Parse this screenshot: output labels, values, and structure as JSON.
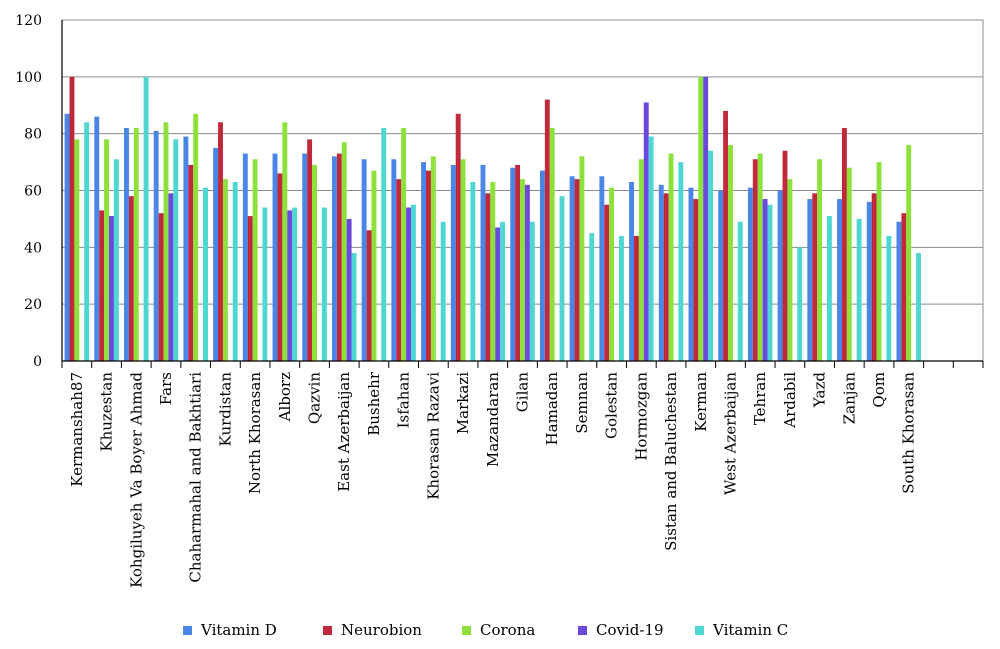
{
  "chart_data": {
    "type": "bar",
    "categories": [
      "Kermanshah87",
      "Khuzestan",
      "Kohgiluyeh Va Boyer Ahmad",
      "Fars",
      "Chaharmahal and Bakhtiari",
      "Kurdistan",
      "North Khorasan",
      "Alborz",
      "Qazvin",
      "East Azerbaijan",
      "Bushehr",
      "Isfahan",
      "Khorasan Razavi",
      "Markazi",
      "Mazandaran",
      "Gilan",
      "Hamadan",
      "Semnan",
      "Golestan",
      "Hormozgan",
      "Sistan and Baluchestan",
      "Kerman",
      "West Azerbaijan",
      "Tehran",
      "Ardabil",
      "Yazd",
      "Zanjan",
      "Qom",
      "South Khorasan",
      "",
      ""
    ],
    "series": [
      {
        "name": "Vitamin D",
        "color": "#4a86e8",
        "values": [
          87,
          86,
          82,
          81,
          79,
          75,
          73,
          73,
          73,
          72,
          71,
          71,
          70,
          69,
          69,
          68,
          67,
          65,
          65,
          63,
          62,
          61,
          60,
          61,
          60,
          57,
          57,
          56,
          49,
          null,
          null
        ]
      },
      {
        "name": "Neurobion",
        "color": "#c0283c",
        "values": [
          100,
          53,
          58,
          52,
          69,
          84,
          51,
          66,
          78,
          73,
          46,
          64,
          67,
          87,
          59,
          69,
          92,
          64,
          55,
          44,
          59,
          57,
          88,
          71,
          74,
          59,
          82,
          59,
          52,
          null,
          null
        ]
      },
      {
        "name": "Corona",
        "color": "#8ee03a",
        "values": [
          78,
          78,
          82,
          84,
          87,
          64,
          71,
          84,
          69,
          77,
          67,
          82,
          72,
          71,
          63,
          64,
          82,
          72,
          61,
          71,
          73,
          100,
          76,
          73,
          64,
          71,
          68,
          70,
          76,
          null,
          null
        ]
      },
      {
        "name": "Covid-19",
        "color": "#6b48e0",
        "values": [
          null,
          51,
          null,
          59,
          null,
          null,
          null,
          53,
          null,
          50,
          null,
          54,
          null,
          null,
          47,
          62,
          null,
          null,
          null,
          91,
          null,
          100,
          null,
          57,
          null,
          null,
          null,
          null,
          null,
          null,
          null
        ]
      },
      {
        "name": "Vitamin C",
        "color": "#4dd6d2",
        "values": [
          84,
          71,
          100,
          78,
          61,
          63,
          54,
          54,
          54,
          38,
          82,
          55,
          49,
          63,
          49,
          49,
          58,
          45,
          44,
          79,
          70,
          74,
          49,
          55,
          40,
          51,
          50,
          44,
          38,
          null,
          null
        ]
      }
    ],
    "yticks": [
      "0",
      "20",
      "40",
      "60",
      "80",
      "100",
      "120"
    ],
    "ylim": [
      0,
      120
    ],
    "grid": "horizontal",
    "legend_position": "bottom"
  }
}
